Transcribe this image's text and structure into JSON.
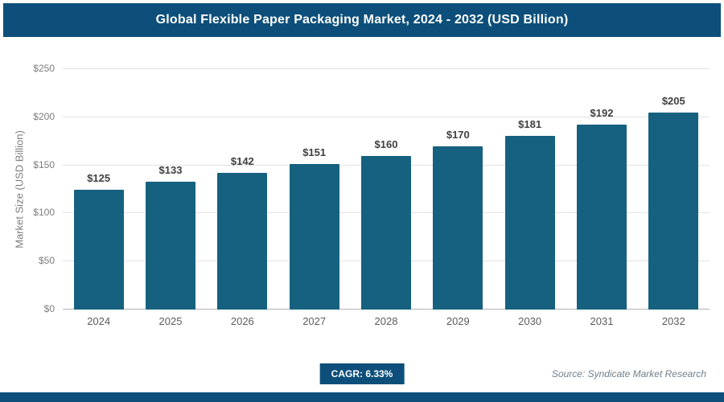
{
  "header": {
    "title": "Global Flexible Paper Packaging Market, 2024 - 2032 (USD Billion)"
  },
  "chart_data": {
    "type": "bar",
    "title": "Global Flexible Paper Packaging Market, 2024 - 2032 (USD Billion)",
    "categories": [
      "2024",
      "2025",
      "2026",
      "2027",
      "2028",
      "2029",
      "2030",
      "2031",
      "2032"
    ],
    "values": [
      125,
      133,
      142,
      151,
      160,
      170,
      181,
      192,
      205
    ],
    "value_labels": [
      "$125",
      "$133",
      "$142",
      "$151",
      "$160",
      "$170",
      "$181",
      "$192",
      "$205"
    ],
    "xlabel": "",
    "ylabel": "Market Size (USD Billion)",
    "ylim": [
      0,
      250
    ],
    "ytick_values": [
      0,
      50,
      100,
      150,
      200,
      250
    ],
    "ytick_labels": [
      "$0",
      "$50",
      "$100",
      "$150",
      "$200",
      "$250"
    ],
    "grid": "horizontal",
    "legend": "none"
  },
  "footer": {
    "cagr": "CAGR: 6.33%",
    "source": "Source: Syndicate Market Research"
  },
  "colors": {
    "header_bg": "#0d4f7a",
    "bar": "#16617f",
    "badge_bg": "#0d4f7a",
    "grid": "#e3e3e3"
  }
}
